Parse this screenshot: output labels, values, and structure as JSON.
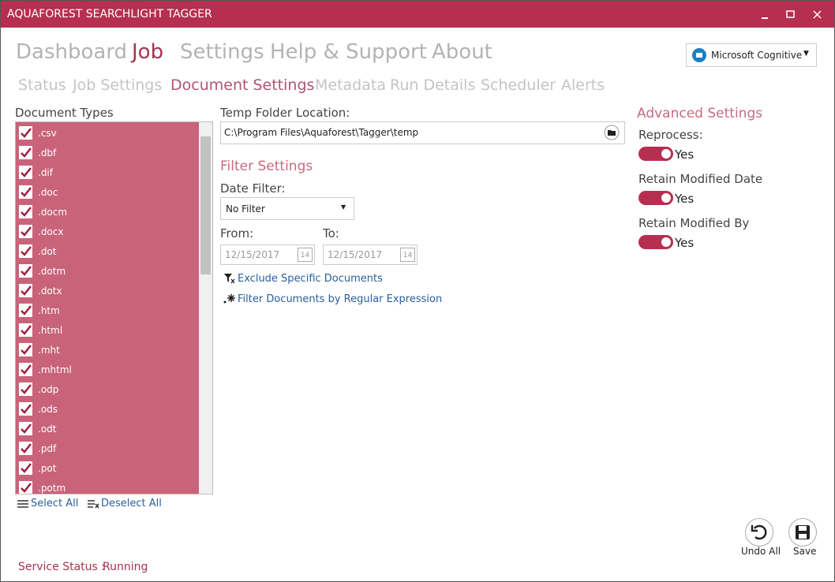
{
  "window": {
    "title": "AQUAFOREST SEARCHLIGHT TAGGER"
  },
  "nav": {
    "main": [
      "Dashboard",
      "Job",
      "Settings",
      "Help & Support",
      "About"
    ],
    "sub": [
      "Status",
      "Job Settings",
      "Document Settings",
      "Metadata",
      "Run Details",
      "Scheduler",
      "Alerts"
    ]
  },
  "provider": "Microsoft Cognitive",
  "document_types": {
    "label": "Document Types",
    "items": [
      ".csv",
      ".dbf",
      ".dif",
      ".doc",
      ".docm",
      ".docx",
      ".dot",
      ".dotm",
      ".dotx",
      ".htm",
      ".html",
      ".mht",
      ".mhtml",
      ".odp",
      ".ods",
      ".odt",
      ".pdf",
      ".pot",
      ".potm"
    ],
    "select_all": "Select All",
    "deselect_all": "Deselect All"
  },
  "temp_folder": {
    "label": "Temp Folder Location:",
    "value": "C:\\Program Files\\Aquaforest\\Tagger\\temp"
  },
  "filter": {
    "heading": "Filter Settings",
    "date_filter_label": "Date Filter:",
    "date_filter_value": "No Filter",
    "from_label": "From:",
    "from_value": "12/15/2017",
    "to_label": "To:",
    "to_value": "12/15/2017",
    "calendar_day": "14",
    "links": [
      "Exclude Specific Documents",
      "Filter Documents by Regular Expression"
    ]
  },
  "advanced": {
    "heading": "Advanced Settings",
    "toggles": [
      {
        "label": "Reprocess:",
        "state": "Yes"
      },
      {
        "label": "Retain Modified Date",
        "state": "Yes"
      },
      {
        "label": "Retain Modified By",
        "state": "Yes"
      }
    ]
  },
  "actions": [
    {
      "label": "Undo All"
    },
    {
      "label": "Save"
    }
  ],
  "status": {
    "label": "Service Status :",
    "value": "Running"
  }
}
